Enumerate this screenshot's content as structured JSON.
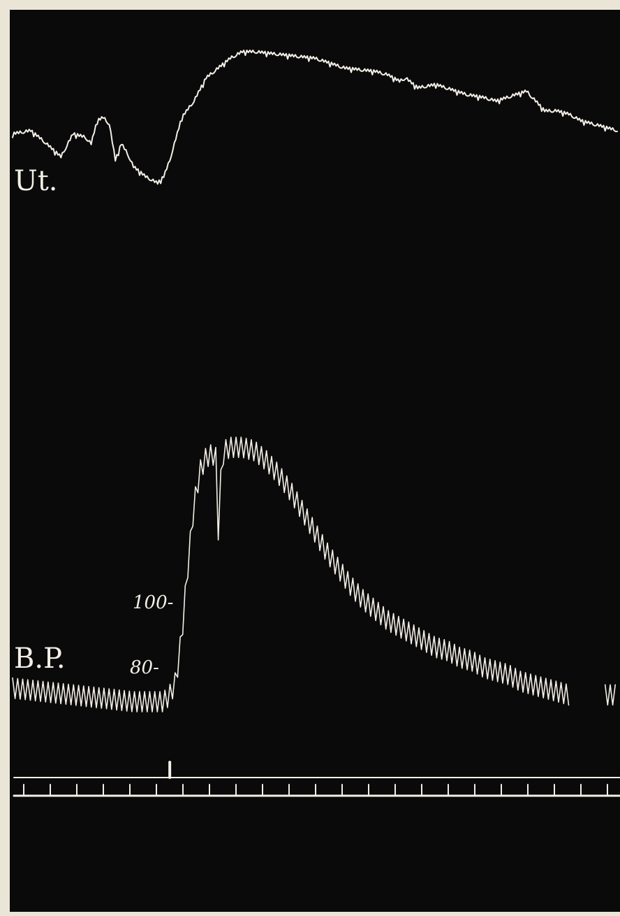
{
  "chart_data": {
    "type": "line",
    "title": "",
    "xlabel": "",
    "ylabel": "",
    "trace_labels": {
      "uterus": "Ut.",
      "blood_pressure": "B.P."
    },
    "bp_scale_labels": [
      "100-",
      "80-"
    ],
    "bp_scale_values": [
      100,
      80
    ],
    "ylim": [
      60,
      150
    ],
    "series": [
      {
        "name": "Ut.",
        "kind": "tracing",
        "x": [
          0,
          3,
          5,
          8,
          10,
          12,
          13,
          14,
          15,
          16,
          17,
          18,
          19,
          20,
          22,
          24,
          25,
          26,
          28,
          30,
          32,
          34,
          36,
          37,
          38,
          40,
          45,
          50,
          55,
          60,
          62,
          64,
          65,
          67,
          70,
          75,
          78,
          80,
          85,
          88,
          90,
          92,
          94,
          96,
          98,
          100
        ],
        "values": [
          0.7,
          0.71,
          0.68,
          0.63,
          0.7,
          0.69,
          0.67,
          0.74,
          0.75,
          0.73,
          0.62,
          0.67,
          0.64,
          0.6,
          0.57,
          0.55,
          0.57,
          0.62,
          0.75,
          0.8,
          0.87,
          0.9,
          0.93,
          0.94,
          0.95,
          0.95,
          0.94,
          0.93,
          0.9,
          0.89,
          0.88,
          0.86,
          0.87,
          0.84,
          0.85,
          0.82,
          0.81,
          0.8,
          0.83,
          0.77,
          0.77,
          0.76,
          0.74,
          0.73,
          0.72,
          0.71
        ]
      },
      {
        "name": "B.P.",
        "kind": "tracing",
        "pulse_amplitude_mmHg": 3,
        "x": [
          0,
          5,
          10,
          15,
          20,
          25,
          26,
          27,
          28,
          29,
          30,
          31,
          32,
          33,
          33.6,
          34,
          34.6,
          35,
          36,
          38,
          40,
          42,
          44,
          46,
          48,
          50,
          52,
          54,
          56,
          58,
          60,
          62,
          64,
          66,
          68,
          70,
          72,
          74,
          76,
          78,
          80,
          82,
          84,
          86,
          88,
          90,
          92,
          93,
          95,
          96,
          97,
          98,
          99,
          100
        ],
        "values": [
          74,
          73,
          72,
          71,
          70,
          70,
          72,
          76,
          90,
          110,
          128,
          138,
          142,
          143,
          142,
          120,
          141,
          144,
          145,
          145,
          144,
          141,
          137,
          132,
          126,
          120,
          114,
          109,
          104,
          100,
          97,
          94,
          92,
          90,
          88,
          86,
          85,
          83,
          82,
          80,
          79,
          78,
          76,
          75,
          74,
          73,
          72,
          null,
          null,
          null,
          null,
          72,
          72,
          72
        ]
      }
    ],
    "time_marker": {
      "tick_count": 23,
      "stimulus_at_x": 26
    }
  }
}
